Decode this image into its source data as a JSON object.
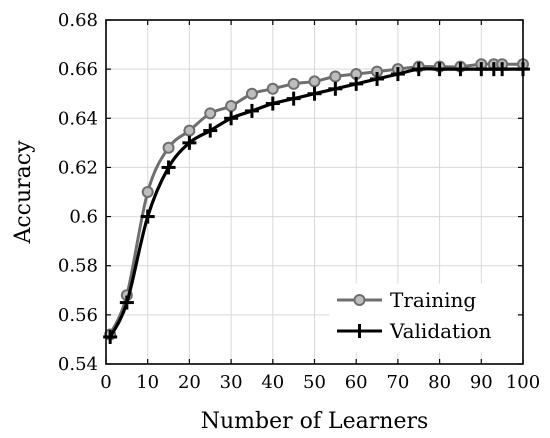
{
  "chart_data": {
    "type": "line",
    "xlabel": "Number of Learners",
    "ylabel": "Accuracy",
    "xlim": [
      0,
      100
    ],
    "ylim": [
      0.54,
      0.68
    ],
    "x_ticks": [
      0,
      10,
      20,
      30,
      40,
      50,
      60,
      70,
      80,
      90,
      100
    ],
    "y_ticks": [
      0.54,
      0.56,
      0.58,
      0.6,
      0.62,
      0.64,
      0.66,
      0.68
    ],
    "y_tick_labels": [
      "0.54",
      "0.56",
      "0.58",
      "0.6",
      "0.62",
      "0.64",
      "0.66",
      "0.68"
    ],
    "grid": true,
    "legend_position": "bottom-right",
    "series": [
      {
        "name": "Training",
        "color": "#6e6e6e",
        "marker": "circle",
        "x": [
          1,
          5,
          10,
          15,
          20,
          25,
          30,
          35,
          40,
          45,
          50,
          55,
          60,
          65,
          70,
          75,
          80,
          85,
          90,
          93,
          95,
          100
        ],
        "y": [
          0.552,
          0.568,
          0.61,
          0.628,
          0.635,
          0.642,
          0.645,
          0.65,
          0.652,
          0.654,
          0.655,
          0.657,
          0.658,
          0.659,
          0.66,
          0.661,
          0.661,
          0.661,
          0.662,
          0.662,
          0.662,
          0.662
        ]
      },
      {
        "name": "Validation",
        "color": "#000000",
        "marker": "plus",
        "x": [
          1,
          5,
          10,
          15,
          20,
          25,
          30,
          35,
          40,
          45,
          50,
          55,
          60,
          65,
          70,
          75,
          80,
          85,
          90,
          93,
          95,
          100
        ],
        "y": [
          0.551,
          0.565,
          0.6,
          0.62,
          0.63,
          0.635,
          0.64,
          0.643,
          0.646,
          0.648,
          0.65,
          0.652,
          0.654,
          0.656,
          0.658,
          0.66,
          0.66,
          0.66,
          0.66,
          0.66,
          0.66,
          0.66
        ]
      }
    ]
  }
}
